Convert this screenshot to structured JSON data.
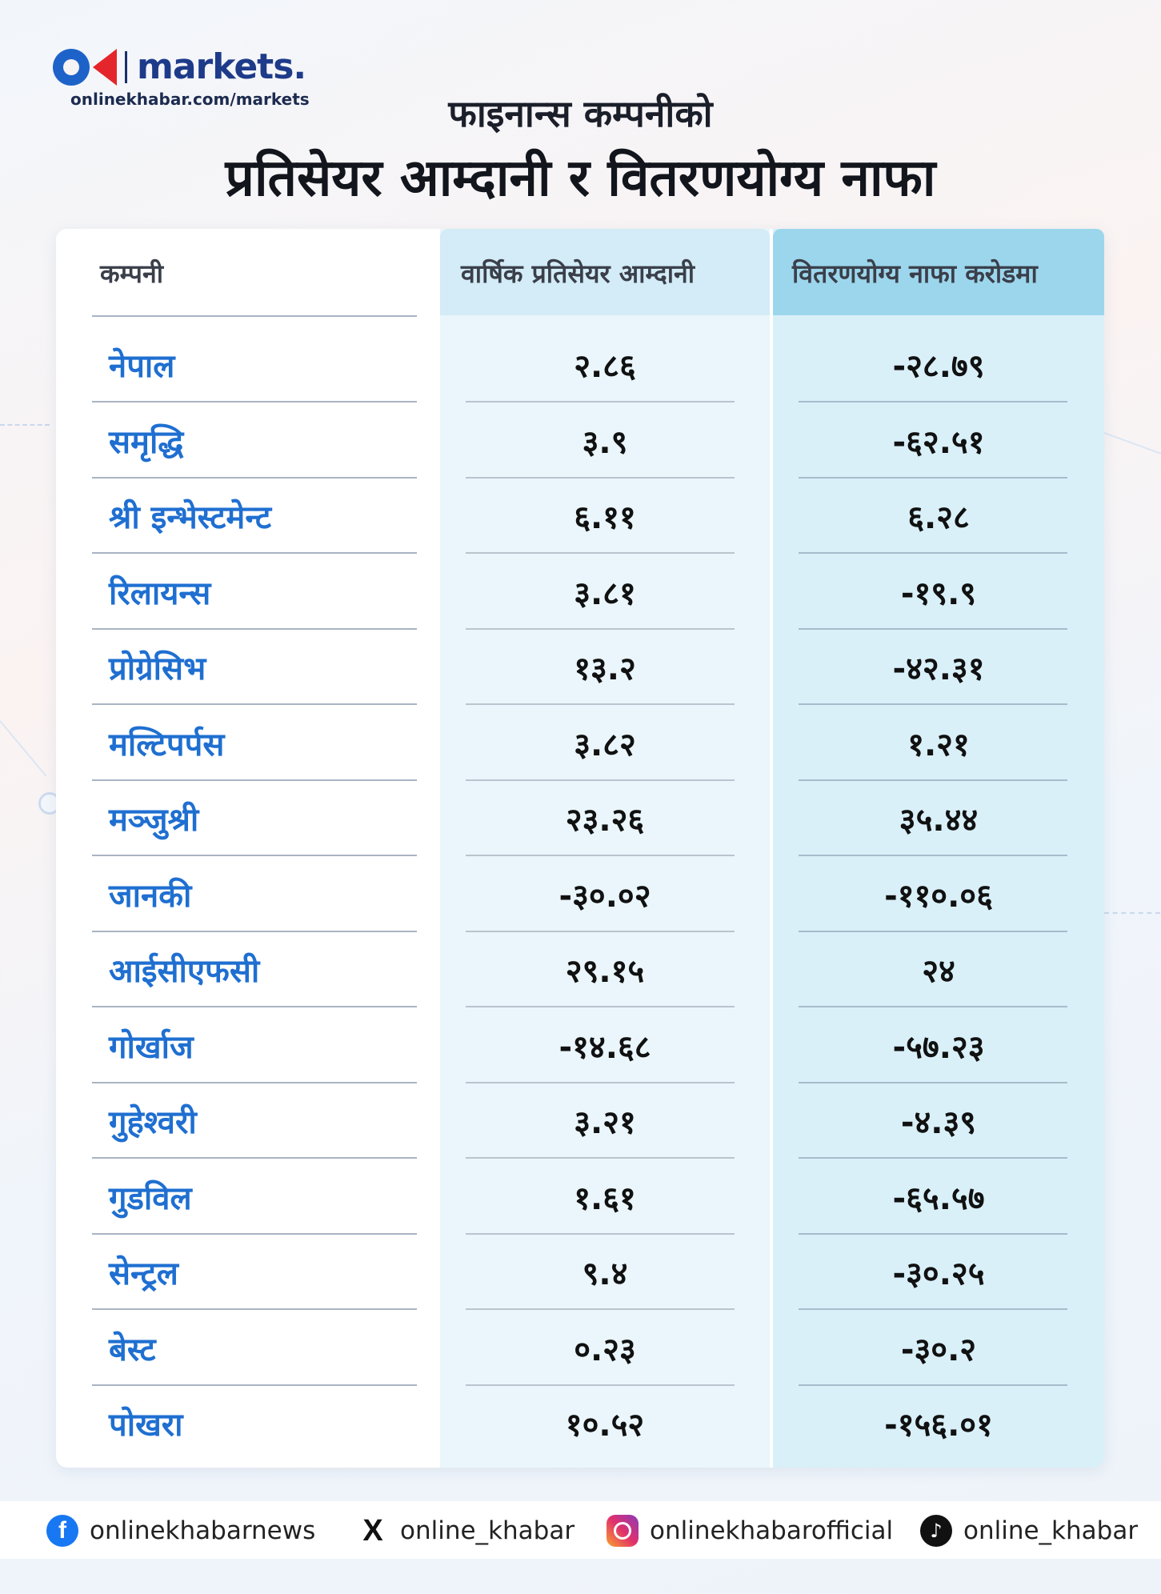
{
  "brand": {
    "name": "markets.",
    "url": "onlinekhabar.com/markets"
  },
  "chart_data": {
    "type": "table",
    "title": "फाइनान्स कम्पनीको",
    "subtitle": "प्रतिसेयर आम्दानी र वितरणयोग्य नाफा",
    "columns": [
      "कम्पनी",
      "वार्षिक प्रतिसेयर आम्दानी",
      "वितरणयोग्य नाफा करोडमा"
    ],
    "rows": [
      {
        "company": "नेपाल",
        "eps": "२.८६",
        "profit": "-२८.७९"
      },
      {
        "company": "समृद्धि",
        "eps": "३.९",
        "profit": "-६२.५१"
      },
      {
        "company": "श्री इन्भेस्टमेन्ट",
        "eps": "६.११",
        "profit": "६.२८"
      },
      {
        "company": "रिलायन्स",
        "eps": "३.८१",
        "profit": "-१९.९"
      },
      {
        "company": "प्रोग्रेसिभ",
        "eps": "१३.२",
        "profit": "-४२.३१"
      },
      {
        "company": "मल्टिपर्पस",
        "eps": "३.८२",
        "profit": "१.२१"
      },
      {
        "company": "मञ्जुश्री",
        "eps": "२३.२६",
        "profit": "३५.४४"
      },
      {
        "company": "जानकी",
        "eps": "-३०.०२",
        "profit": "-११०.०६"
      },
      {
        "company": "आईसीएफसी",
        "eps": "२९.१५",
        "profit": "२४"
      },
      {
        "company": "गोर्खाज",
        "eps": "-१४.६८",
        "profit": "-५७.२३"
      },
      {
        "company": "गुहेश्वरी",
        "eps": "३.२१",
        "profit": "-४.३९"
      },
      {
        "company": "गुडविल",
        "eps": "१.६१",
        "profit": "-६५.५७"
      },
      {
        "company": "सेन्ट्रल",
        "eps": "९.४",
        "profit": "-३०.२५"
      },
      {
        "company": "बेस्ट",
        "eps": "०.२३",
        "profit": "-३०.२"
      },
      {
        "company": "पोखरा",
        "eps": "१०.५२",
        "profit": "-१५६.०१"
      }
    ]
  },
  "footer": {
    "facebook": "onlinekhabarnews",
    "x": "online_khabar",
    "instagram": "onlinekhabarofficial",
    "tiktok": "online_khabar"
  }
}
